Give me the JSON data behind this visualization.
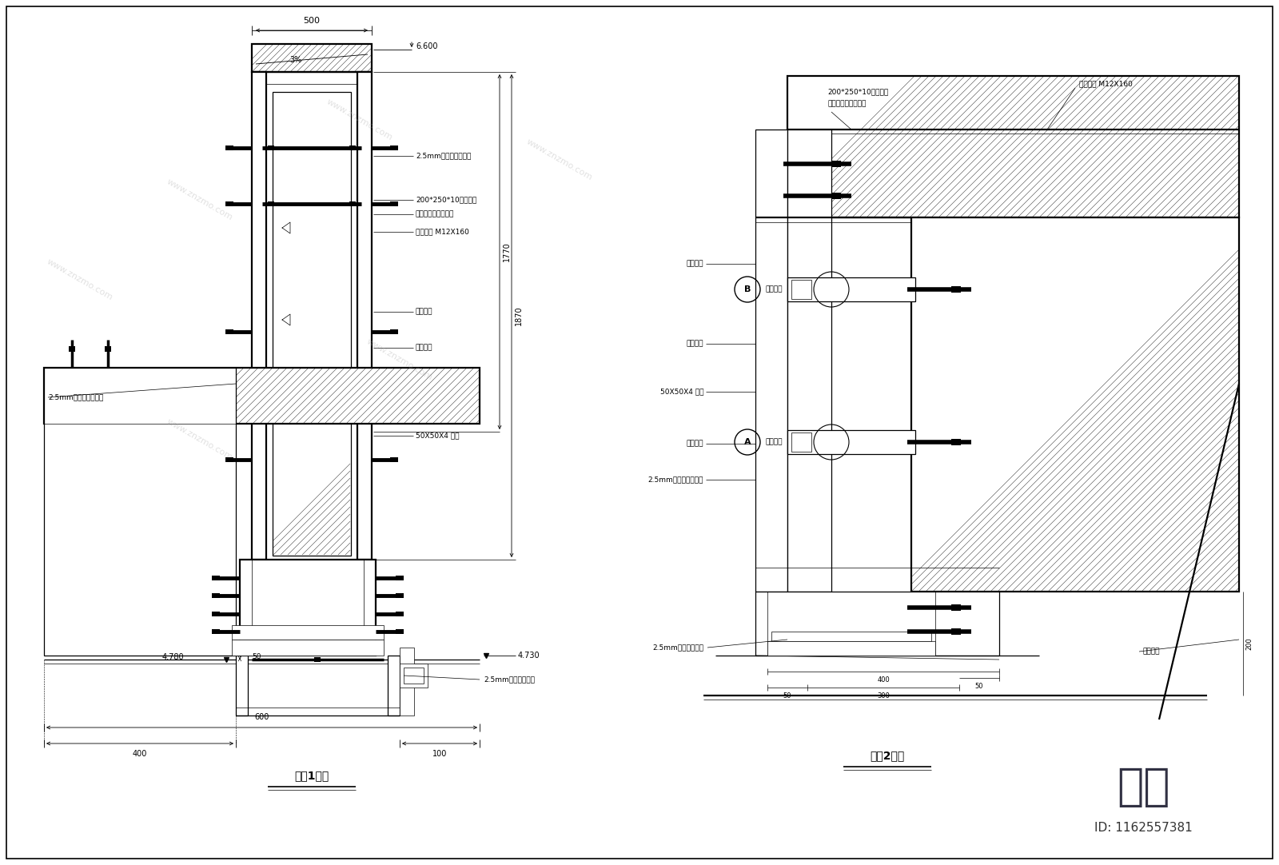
{
  "bg_color": "#ffffff",
  "title1": "节点1大样",
  "title2": "节点2大样",
  "watermark_main": "知末",
  "watermark_id": "ID: 1162557381",
  "dim_500": "500",
  "dim_3pct": "3%",
  "dim_6600": "6.600",
  "dim_1770": "1770",
  "dim_1870": "1870",
  "dim_4780": "4.780",
  "dim_4730": "4.730",
  "dim_600": "600",
  "dim_400": "400",
  "dim_100": "100",
  "dim_50": "50",
  "dim_300": "300",
  "dim_200": "200"
}
